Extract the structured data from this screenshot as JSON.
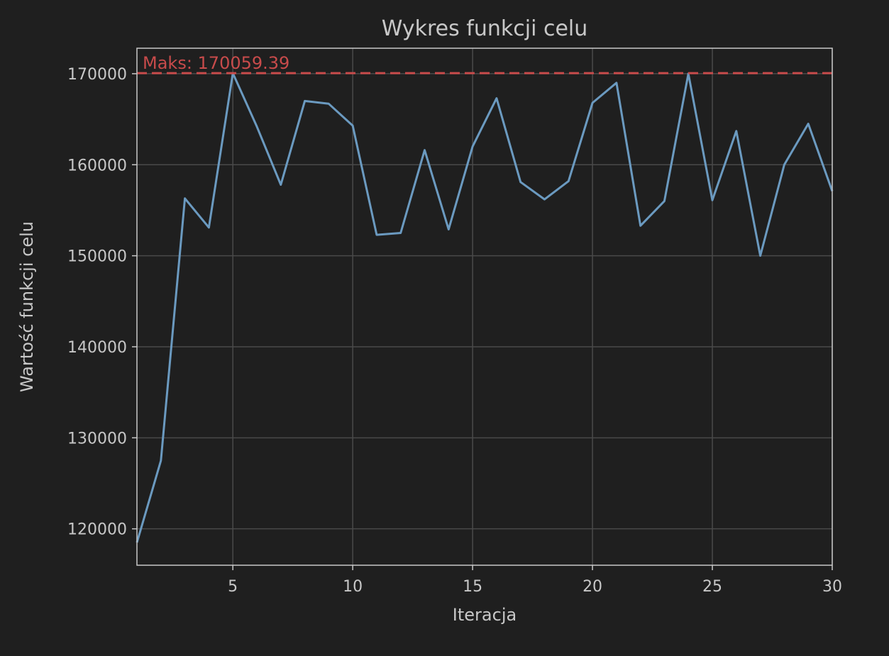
{
  "chart_data": {
    "type": "line",
    "title": "Wykres funkcji celu",
    "xlabel": "Iteracja",
    "ylabel": "Wartość funkcji celu",
    "xlim": [
      1,
      30
    ],
    "ylim": [
      116000,
      172800
    ],
    "xticks": [
      5,
      10,
      15,
      20,
      25,
      30
    ],
    "yticks": [
      120000,
      130000,
      140000,
      150000,
      160000,
      170000
    ],
    "xtick_labels": [
      "5",
      "10",
      "15",
      "20",
      "25",
      "30"
    ],
    "ytick_labels": [
      "120000",
      "130000",
      "140000",
      "150000",
      "160000",
      "170000"
    ],
    "grid": true,
    "series": [
      {
        "color": "#6b9ac0",
        "x": [
          1,
          2,
          3,
          4,
          5,
          6,
          7,
          8,
          9,
          10,
          11,
          12,
          13,
          14,
          15,
          16,
          17,
          18,
          19,
          20,
          21,
          22,
          23,
          24,
          25,
          26,
          27,
          28,
          29,
          30
        ],
        "y": [
          118500,
          127500,
          156300,
          153100,
          170059,
          164200,
          157800,
          167000,
          166700,
          164300,
          152300,
          152500,
          161600,
          152900,
          162000,
          167300,
          158100,
          156200,
          158200,
          166800,
          169000,
          153300,
          156000,
          170000,
          156100,
          163700,
          150000,
          160000,
          164500,
          157100
        ]
      }
    ],
    "max_line": {
      "value": 170059.39,
      "label": "Maks: 170059.39",
      "color": "#c84b4b"
    }
  }
}
